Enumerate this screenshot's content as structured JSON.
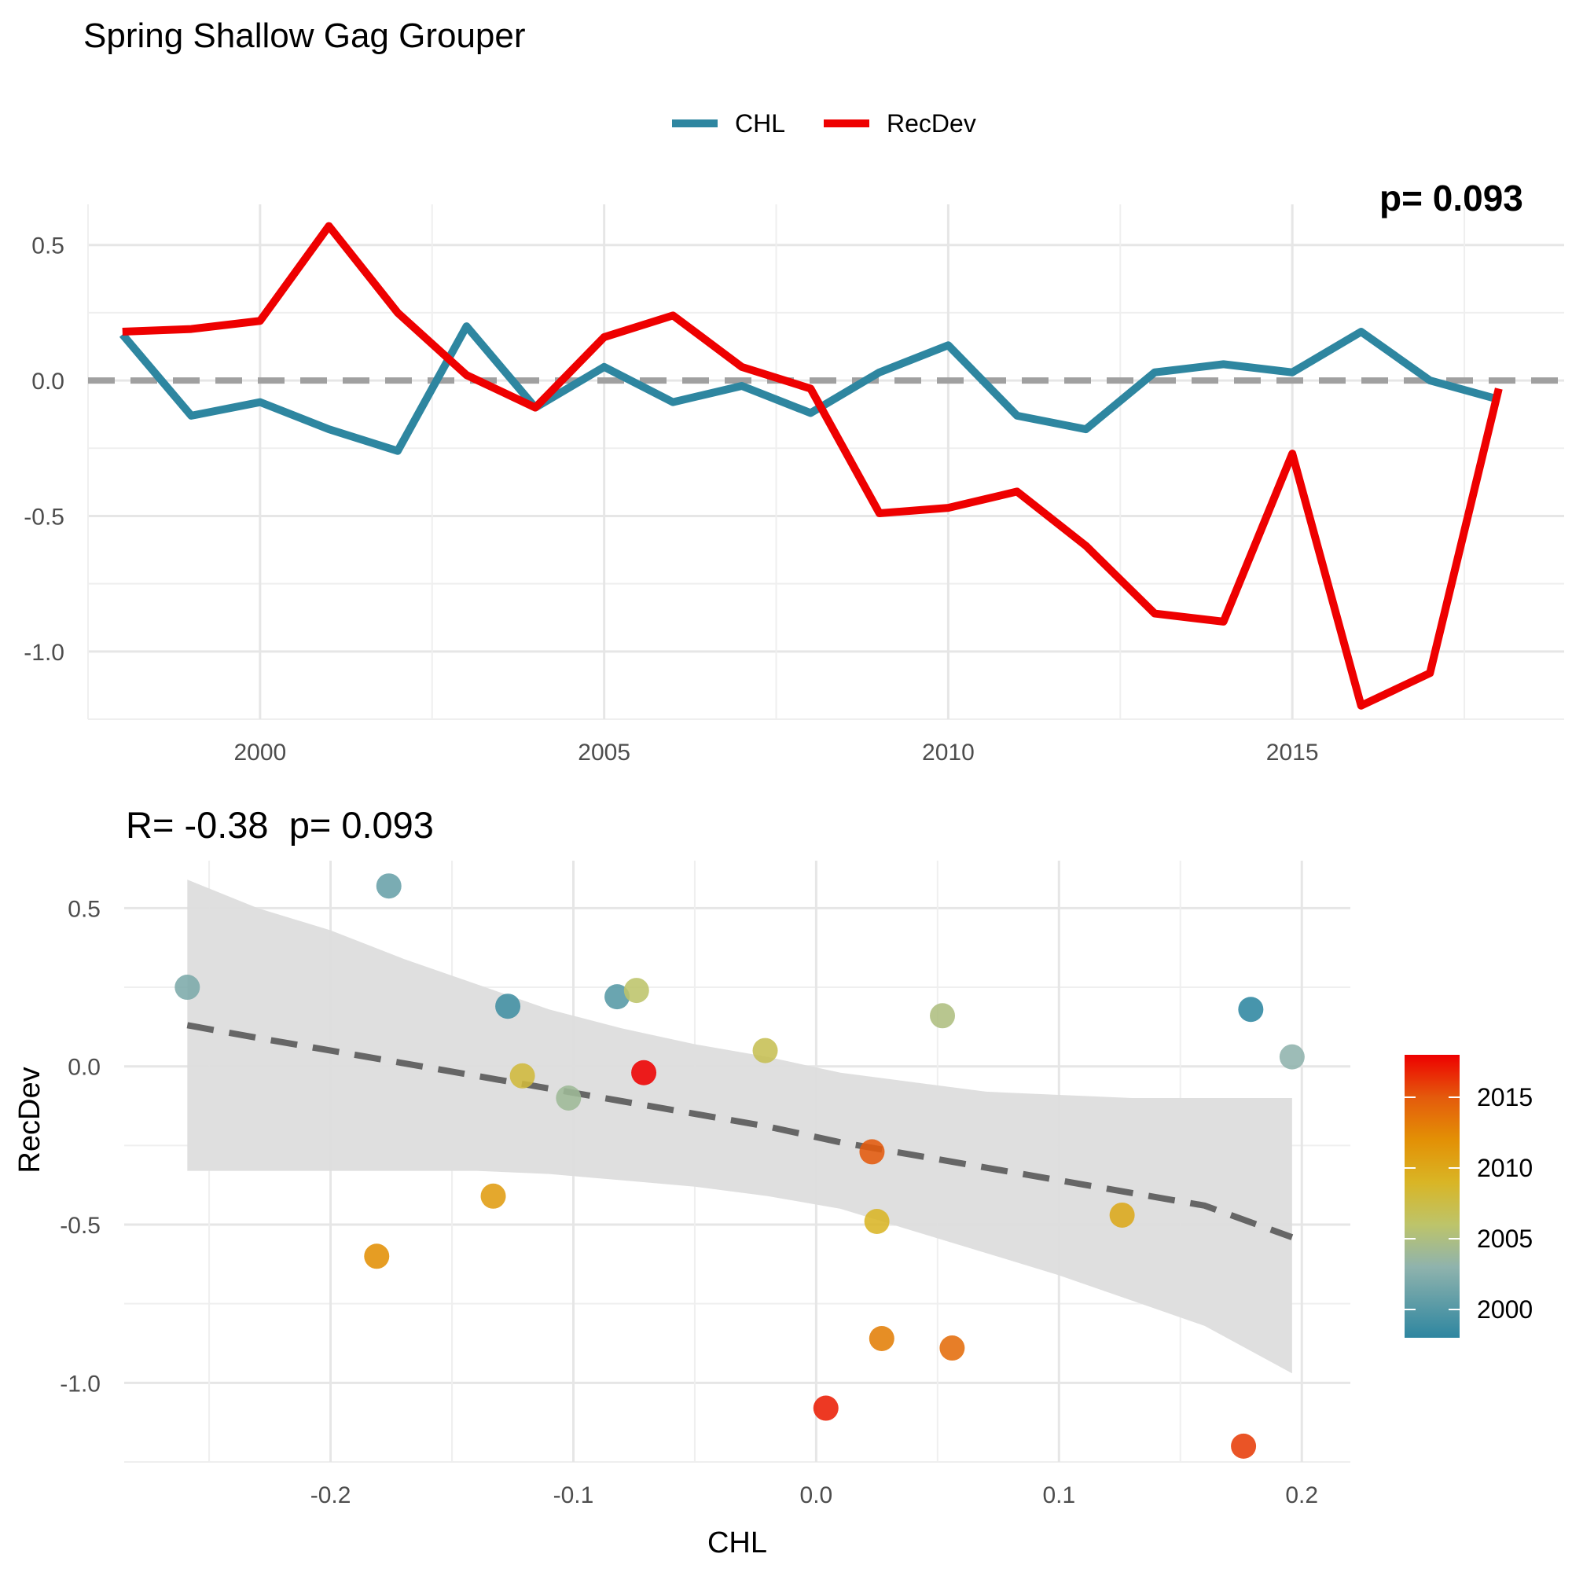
{
  "title": "Spring Shallow Gag Grouper",
  "colors": {
    "chl": "#2E86A0",
    "recdev": "#EE0000",
    "zero_line": "#A0A0A0",
    "fit_line": "#666666",
    "ribbon": "#DDDDDD"
  },
  "chart_data": [
    {
      "type": "line",
      "title": "",
      "legend": {
        "position": "top",
        "entries": [
          "CHL",
          "RecDev"
        ]
      },
      "corner_text": "p= 0.093",
      "x": [
        1998,
        1999,
        2000,
        2001,
        2002,
        2003,
        2004,
        2005,
        2006,
        2007,
        2008,
        2009,
        2010,
        2011,
        2012,
        2013,
        2014,
        2015,
        2016,
        2017,
        2018
      ],
      "series": [
        {
          "name": "CHL",
          "values": [
            0.17,
            -0.13,
            -0.08,
            -0.18,
            -0.26,
            0.2,
            -0.1,
            0.05,
            -0.08,
            -0.02,
            -0.12,
            0.03,
            0.13,
            -0.13,
            -0.18,
            0.03,
            0.06,
            0.03,
            0.18,
            0.0,
            -0.07
          ]
        },
        {
          "name": "RecDev",
          "values": [
            0.18,
            0.19,
            0.22,
            0.57,
            0.25,
            0.02,
            -0.1,
            0.16,
            0.24,
            0.05,
            -0.03,
            -0.49,
            -0.47,
            -0.41,
            -0.61,
            -0.86,
            -0.89,
            -0.27,
            -1.2,
            -1.08,
            -0.03
          ]
        }
      ],
      "xticks": [
        "2000",
        "2005",
        "2010",
        "2015"
      ],
      "xtick_values": [
        2000,
        2005,
        2010,
        2015
      ],
      "yticks": [
        "-1.0",
        "-0.5",
        "0.0",
        "0.5"
      ],
      "ytick_values": [
        -1.0,
        -0.5,
        0.0,
        0.5
      ],
      "xlim": [
        1997.5,
        2018.95
      ],
      "ylim": [
        -1.25,
        0.65
      ],
      "reference_line": 0,
      "grid": true
    },
    {
      "type": "scatter",
      "title": "R= -0.38  p= 0.093",
      "xlabel": "CHL",
      "ylabel": "RecDev",
      "xlim": [
        -0.285,
        0.22
      ],
      "ylim": [
        -1.25,
        0.65
      ],
      "xticks": [
        "-0.2",
        "-0.1",
        "0.0",
        "0.1",
        "0.2"
      ],
      "xtick_values": [
        -0.2,
        -0.1,
        0.0,
        0.1,
        0.2
      ],
      "yticks": [
        "-1.0",
        "-0.5",
        "0.0",
        "0.5"
      ],
      "ytick_values": [
        -1.0,
        -0.5,
        0.0,
        0.5
      ],
      "grid": true,
      "colorbar": {
        "ticks": [
          "2000",
          "2005",
          "2010",
          "2015"
        ],
        "tick_values": [
          2000,
          2005,
          2010,
          2015
        ],
        "range": [
          1998,
          2018
        ]
      },
      "points": [
        {
          "year": 1998,
          "x": 0.179,
          "y": 0.18
        },
        {
          "year": 1999,
          "x": -0.127,
          "y": 0.19
        },
        {
          "year": 2000,
          "x": -0.082,
          "y": 0.22
        },
        {
          "year": 2001,
          "x": -0.176,
          "y": 0.57
        },
        {
          "year": 2002,
          "x": -0.259,
          "y": 0.25
        },
        {
          "year": 2003,
          "x": 0.196,
          "y": 0.03
        },
        {
          "year": 2004,
          "x": -0.102,
          "y": -0.1
        },
        {
          "year": 2005,
          "x": 0.052,
          "y": 0.16
        },
        {
          "year": 2006,
          "x": -0.074,
          "y": 0.24
        },
        {
          "year": 2007,
          "x": -0.021,
          "y": 0.05
        },
        {
          "year": 2008,
          "x": -0.121,
          "y": -0.03
        },
        {
          "year": 2009,
          "x": 0.025,
          "y": -0.49
        },
        {
          "year": 2010,
          "x": 0.126,
          "y": -0.47
        },
        {
          "year": 2011,
          "x": -0.133,
          "y": -0.41
        },
        {
          "year": 2012,
          "x": -0.181,
          "y": -0.6
        },
        {
          "year": 2013,
          "x": 0.027,
          "y": -0.86
        },
        {
          "year": 2014,
          "x": 0.056,
          "y": -0.89
        },
        {
          "year": 2015,
          "x": 0.023,
          "y": -0.27
        },
        {
          "year": 2016,
          "x": 0.176,
          "y": -1.2
        },
        {
          "year": 2017,
          "x": 0.004,
          "y": -1.08
        },
        {
          "year": 2018,
          "x": -0.071,
          "y": -0.02
        }
      ],
      "fit": {
        "x": [
          -0.259,
          -0.23,
          -0.2,
          -0.17,
          -0.14,
          -0.11,
          -0.08,
          -0.05,
          -0.02,
          0.01,
          0.04,
          0.07,
          0.1,
          0.13,
          0.16,
          0.196
        ],
        "y": [
          0.13,
          0.09,
          0.05,
          0.01,
          -0.03,
          -0.07,
          -0.11,
          -0.15,
          -0.19,
          -0.24,
          -0.28,
          -0.32,
          -0.36,
          -0.4,
          -0.44,
          -0.54
        ],
        "lower": [
          -0.33,
          -0.33,
          -0.33,
          -0.33,
          -0.33,
          -0.34,
          -0.36,
          -0.38,
          -0.41,
          -0.45,
          -0.52,
          -0.59,
          -0.66,
          -0.74,
          -0.82,
          -0.97
        ],
        "upper": [
          0.59,
          0.5,
          0.43,
          0.34,
          0.26,
          0.18,
          0.12,
          0.07,
          0.03,
          -0.02,
          -0.05,
          -0.08,
          -0.09,
          -0.1,
          -0.1,
          -0.1
        ]
      }
    }
  ]
}
